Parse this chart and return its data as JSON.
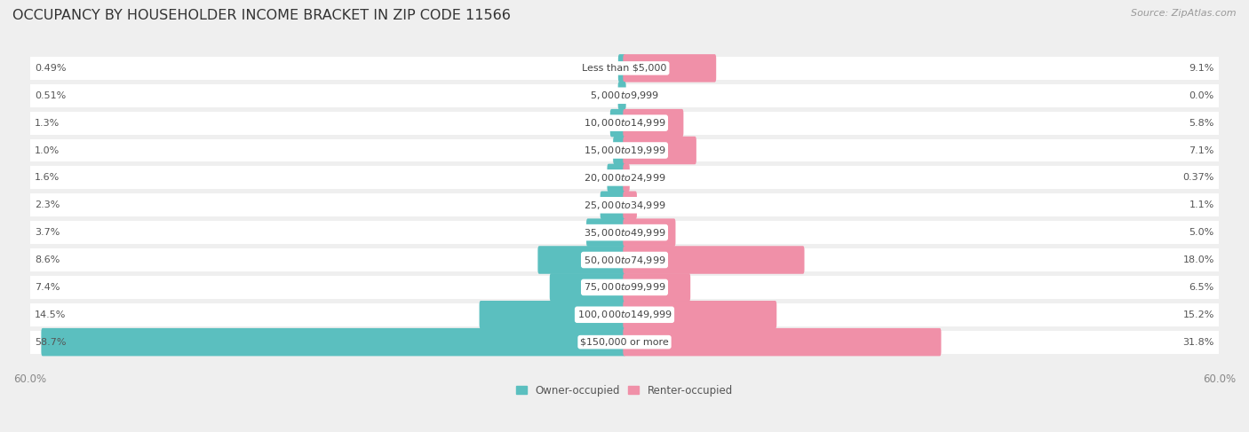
{
  "title": "OCCUPANCY BY HOUSEHOLDER INCOME BRACKET IN ZIP CODE 11566",
  "source": "Source: ZipAtlas.com",
  "categories": [
    "Less than $5,000",
    "$5,000 to $9,999",
    "$10,000 to $14,999",
    "$15,000 to $19,999",
    "$20,000 to $24,999",
    "$25,000 to $34,999",
    "$35,000 to $49,999",
    "$50,000 to $74,999",
    "$75,000 to $99,999",
    "$100,000 to $149,999",
    "$150,000 or more"
  ],
  "owner_values": [
    0.49,
    0.51,
    1.3,
    1.0,
    1.6,
    2.3,
    3.7,
    8.6,
    7.4,
    14.5,
    58.7
  ],
  "renter_values": [
    9.1,
    0.0,
    5.8,
    7.1,
    0.37,
    1.1,
    5.0,
    18.0,
    6.5,
    15.2,
    31.8
  ],
  "owner_color": "#5bbfbf",
  "renter_color": "#f090a8",
  "axis_max": 60.0,
  "background_color": "#efefef",
  "bar_bg_color": "#ffffff",
  "title_fontsize": 11.5,
  "label_fontsize": 8.0,
  "value_fontsize": 8.0,
  "tick_fontsize": 8.5,
  "source_fontsize": 8.0,
  "legend_fontsize": 8.5
}
